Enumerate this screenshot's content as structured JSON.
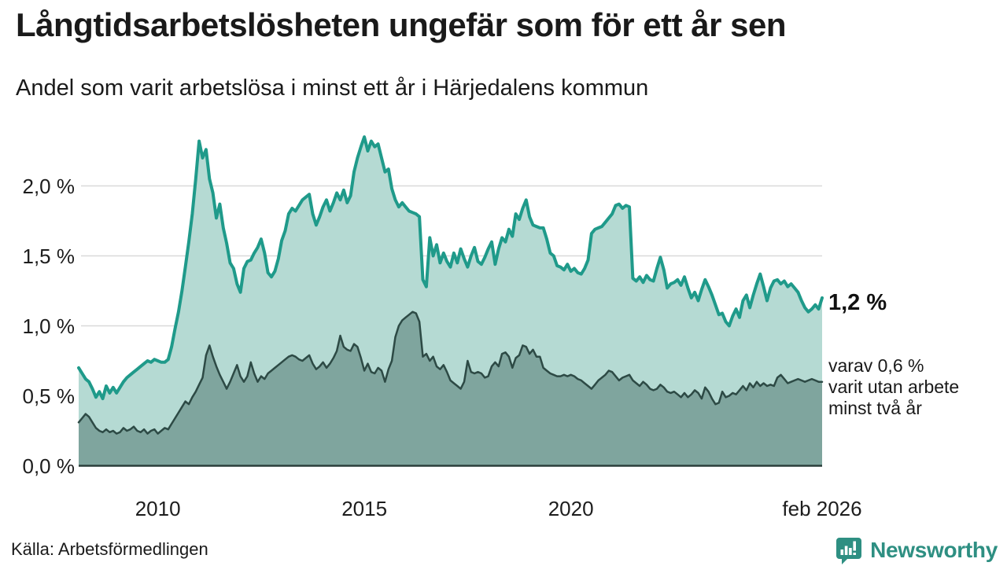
{
  "header": {
    "title": "Långtidsarbetslösheten ungefär som för ett år sen",
    "subtitle": "Andel som varit arbetslösa i minst ett år i Härjedalens kommun"
  },
  "chart_data": {
    "type": "area",
    "title": "Långtidsarbetslösheten ungefär som för ett år sen",
    "subtitle": "Andel som varit arbetslösa i minst ett år i Härjedalens kommun",
    "unit": "%",
    "x_start": 2008.083,
    "x_end": 2026.083,
    "x_ticks": [
      {
        "label": "2010",
        "year": 2010.0
      },
      {
        "label": "2015",
        "year": 2015.0
      },
      {
        "label": "2020",
        "year": 2020.0
      },
      {
        "label": "feb 2026",
        "year": 2026.083
      }
    ],
    "y_ticks": [
      {
        "label": "0,0 %",
        "value": 0.0
      },
      {
        "label": "0,5 %",
        "value": 0.5
      },
      {
        "label": "1,0 %",
        "value": 1.0
      },
      {
        "label": "1,5 %",
        "value": 1.5
      },
      {
        "label": "2,0 %",
        "value": 2.0
      }
    ],
    "ylim": [
      0,
      2.46
    ],
    "grid": true,
    "colors": {
      "line_1yr": "#1f9a8a",
      "fill_1yr": "#b5dad3",
      "line_2yr": "#2d4a45",
      "fill_2yr": "#7fa59e",
      "gridline": "#d9d9d9",
      "baseline": "#2b3f3b"
    },
    "series": [
      {
        "name": "Andel arbetslösa minst ett år",
        "last_value": 1.2,
        "values": [
          0.7,
          0.66,
          0.62,
          0.6,
          0.55,
          0.49,
          0.53,
          0.48,
          0.57,
          0.52,
          0.56,
          0.52,
          0.56,
          0.6,
          0.63,
          0.65,
          0.67,
          0.69,
          0.71,
          0.73,
          0.75,
          0.74,
          0.76,
          0.75,
          0.74,
          0.74,
          0.76,
          0.85,
          0.98,
          1.1,
          1.25,
          1.42,
          1.6,
          1.8,
          2.05,
          2.32,
          2.2,
          2.26,
          2.05,
          1.95,
          1.77,
          1.87,
          1.7,
          1.59,
          1.45,
          1.41,
          1.3,
          1.24,
          1.41,
          1.46,
          1.47,
          1.52,
          1.56,
          1.62,
          1.52,
          1.38,
          1.35,
          1.39,
          1.48,
          1.61,
          1.68,
          1.8,
          1.84,
          1.82,
          1.86,
          1.9,
          1.92,
          1.94,
          1.8,
          1.72,
          1.78,
          1.85,
          1.9,
          1.82,
          1.88,
          1.95,
          1.9,
          1.97,
          1.88,
          1.93,
          2.1,
          2.2,
          2.28,
          2.35,
          2.25,
          2.32,
          2.28,
          2.3,
          2.2,
          2.1,
          2.12,
          1.98,
          1.9,
          1.85,
          1.88,
          1.85,
          1.82,
          1.81,
          1.8,
          1.78,
          1.33,
          1.28,
          1.63,
          1.5,
          1.58,
          1.45,
          1.52,
          1.46,
          1.42,
          1.52,
          1.45,
          1.55,
          1.48,
          1.42,
          1.5,
          1.56,
          1.46,
          1.44,
          1.49,
          1.55,
          1.6,
          1.44,
          1.55,
          1.63,
          1.6,
          1.69,
          1.64,
          1.8,
          1.76,
          1.84,
          1.9,
          1.78,
          1.72,
          1.71,
          1.7,
          1.7,
          1.62,
          1.52,
          1.5,
          1.43,
          1.42,
          1.4,
          1.44,
          1.39,
          1.41,
          1.38,
          1.37,
          1.41,
          1.47,
          1.66,
          1.69,
          1.7,
          1.71,
          1.74,
          1.77,
          1.8,
          1.86,
          1.87,
          1.84,
          1.86,
          1.85,
          1.34,
          1.32,
          1.35,
          1.31,
          1.36,
          1.33,
          1.32,
          1.41,
          1.49,
          1.4,
          1.27,
          1.3,
          1.31,
          1.33,
          1.29,
          1.35,
          1.27,
          1.2,
          1.24,
          1.18,
          1.26,
          1.33,
          1.28,
          1.22,
          1.15,
          1.08,
          1.09,
          1.03,
          1.0,
          1.07,
          1.12,
          1.06,
          1.18,
          1.22,
          1.13,
          1.22,
          1.3,
          1.37,
          1.28,
          1.18,
          1.27,
          1.32,
          1.33,
          1.3,
          1.32,
          1.28,
          1.3,
          1.27,
          1.24,
          1.18,
          1.13,
          1.1,
          1.12,
          1.15,
          1.12,
          1.2
        ]
      },
      {
        "name": "Andel utan arbete minst två år",
        "last_value": 0.6,
        "values": [
          0.31,
          0.34,
          0.37,
          0.35,
          0.31,
          0.27,
          0.25,
          0.24,
          0.26,
          0.24,
          0.25,
          0.23,
          0.24,
          0.27,
          0.25,
          0.26,
          0.28,
          0.25,
          0.24,
          0.26,
          0.23,
          0.25,
          0.26,
          0.23,
          0.25,
          0.27,
          0.26,
          0.3,
          0.34,
          0.38,
          0.42,
          0.46,
          0.44,
          0.49,
          0.53,
          0.58,
          0.63,
          0.79,
          0.86,
          0.78,
          0.71,
          0.65,
          0.6,
          0.55,
          0.6,
          0.66,
          0.72,
          0.64,
          0.6,
          0.64,
          0.74,
          0.66,
          0.6,
          0.64,
          0.62,
          0.66,
          0.68,
          0.7,
          0.72,
          0.74,
          0.76,
          0.78,
          0.79,
          0.78,
          0.76,
          0.75,
          0.77,
          0.79,
          0.73,
          0.69,
          0.71,
          0.74,
          0.7,
          0.73,
          0.77,
          0.82,
          0.93,
          0.85,
          0.83,
          0.82,
          0.87,
          0.85,
          0.77,
          0.68,
          0.73,
          0.67,
          0.66,
          0.7,
          0.68,
          0.6,
          0.69,
          0.75,
          0.92,
          1.0,
          1.04,
          1.06,
          1.08,
          1.1,
          1.09,
          1.03,
          0.78,
          0.8,
          0.75,
          0.78,
          0.71,
          0.69,
          0.72,
          0.67,
          0.61,
          0.59,
          0.57,
          0.55,
          0.6,
          0.75,
          0.67,
          0.66,
          0.67,
          0.66,
          0.63,
          0.64,
          0.71,
          0.74,
          0.71,
          0.8,
          0.81,
          0.78,
          0.7,
          0.77,
          0.79,
          0.86,
          0.85,
          0.8,
          0.83,
          0.78,
          0.78,
          0.7,
          0.68,
          0.66,
          0.65,
          0.64,
          0.64,
          0.65,
          0.64,
          0.65,
          0.64,
          0.62,
          0.61,
          0.59,
          0.57,
          0.55,
          0.58,
          0.61,
          0.63,
          0.65,
          0.68,
          0.67,
          0.64,
          0.61,
          0.63,
          0.64,
          0.65,
          0.61,
          0.59,
          0.57,
          0.6,
          0.58,
          0.55,
          0.54,
          0.55,
          0.58,
          0.56,
          0.53,
          0.52,
          0.53,
          0.51,
          0.49,
          0.52,
          0.49,
          0.51,
          0.54,
          0.52,
          0.48,
          0.56,
          0.53,
          0.48,
          0.44,
          0.45,
          0.53,
          0.49,
          0.5,
          0.52,
          0.51,
          0.54,
          0.57,
          0.54,
          0.59,
          0.56,
          0.6,
          0.57,
          0.59,
          0.57,
          0.58,
          0.57,
          0.63,
          0.65,
          0.62,
          0.59,
          0.6,
          0.61,
          0.62,
          0.61,
          0.6,
          0.61,
          0.62,
          0.61,
          0.6,
          0.6
        ]
      }
    ],
    "annotations": {
      "end_value_label": "1,2 %",
      "end_note_lines": [
        "varav 0,6 %",
        "varit utan arbete",
        "minst två år"
      ]
    },
    "legend_position": "none"
  },
  "footer": {
    "source": "Källa: Arbetsförmedlingen",
    "brand": "Newsworthy",
    "brand_color": "#2e8f82",
    "brand_icon": "bar-chart-speech-bubble"
  }
}
